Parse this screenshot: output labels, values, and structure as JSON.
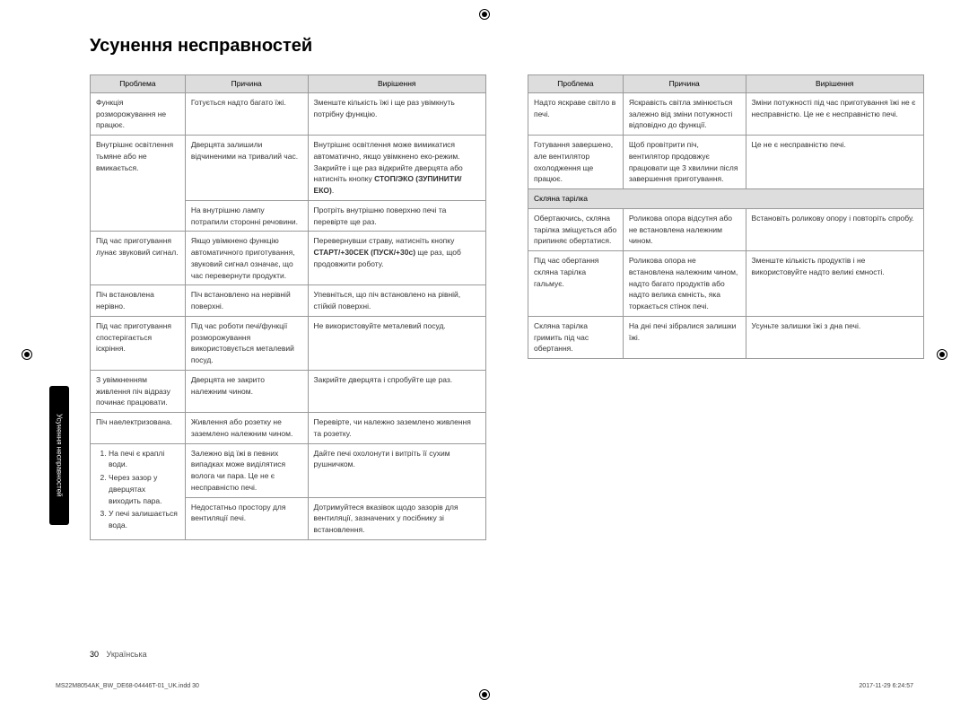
{
  "title": "Усунення несправностей",
  "sideTab": "Усунення несправностей",
  "headers": {
    "problem": "Проблема",
    "cause": "Причина",
    "solution": "Вирішення"
  },
  "table1": {
    "rows": [
      {
        "p": "Функція розморожування не працює.",
        "c": "Готується надто багато їжі.",
        "s": "Зменште кількість їжі і ще раз увімкнуть потрібну функцію.",
        "rowspanP": 1,
        "rowspanC": 1
      },
      {
        "p": "Внутрішнє освітлення тьмяне або не вмикається.",
        "c": "Дверцята залишили відчиненими на тривалий час.",
        "s_pre": "Внутрішнє освітлення може вимикатися автоматично, якщо увімкнено еко-режим. Закрийте і ще раз відкрийте дверцята або натисніть кнопку ",
        "s_bold": "СТОП/ЭКО (ЗУПИНИТИ/ЕКО)",
        "s_post": ".",
        "rowspanP": 2
      },
      {
        "c": "На внутрішню лампу потрапили сторонні речовини.",
        "s": "Протріть внутрішню поверхню печі та перевірте ще раз."
      },
      {
        "p": "Під час приготування лунає звуковий сигнал.",
        "c": "Якщо увімкнено функцію автоматичного приготування, звуковий сигнал означає, що час перевернути продукти.",
        "s_pre": "Перевернувши страву, натисніть кнопку ",
        "s_bold": "СТАРТ/+30СЕК (ПУСК/+30с)",
        "s_post": " ще раз, щоб продовжити роботу."
      },
      {
        "p": "Піч встановлена нерівно.",
        "c": "Піч встановлено на нерівній поверхні.",
        "s": "Упевніться, що піч встановлено на рівній, стійкій поверхні."
      },
      {
        "p": "Під час приготування спостерігається іскріння.",
        "c": "Під час роботи печі/функції розморожування використовується металевий посуд.",
        "s": "Не використовуйте металевий посуд."
      },
      {
        "p": "З увімкненням живлення піч відразу починає працювати.",
        "c": "Дверцята не закрито належним чином.",
        "s": "Закрийте дверцята і спробуйте ще раз."
      },
      {
        "p": "Піч наелектризована.",
        "c": "Живлення або розетку не заземлено належним чином.",
        "s": "Перевірте, чи належно заземлено живлення та розетку."
      },
      {
        "p_list": [
          "На печі є краплі води.",
          "Через зазор у дверцятах виходить пара.",
          "У печі залишається вода."
        ],
        "c": "Залежно від їжі в певних випадках може виділятися волога чи пара. Це не є несправністю печі.",
        "s": "Дайте печі охолонути і витріть її сухим рушничком.",
        "rowspanP": 2
      },
      {
        "c": "Недостатньо простору для вентиляції печі.",
        "s": "Дотримуйтеся вказівок щодо зазорів для вентиляції, зазначених у посібнику зі встановлення."
      }
    ]
  },
  "table2": {
    "rows": [
      {
        "p": "Надто яскраве світло в печі.",
        "c": "Яскравість світла змінюється залежно від зміни потужності відповідно до функції.",
        "s": "Зміни потужності під час приготування їжі не є несправністю. Це не є несправністю печі."
      },
      {
        "p": "Готування завершено, але вентилятор охолодження ще працює.",
        "c": "Щоб провітрити піч, вентилятор продовжує працювати ще 3 хвилини після завершення приготування.",
        "s": "Це не є несправністю печі."
      }
    ],
    "subheader": "Скляна тарілка",
    "rows2": [
      {
        "p": "Обертаючись, скляна тарілка зміщується або припиняє обертатися.",
        "c": "Роликова опора відсутня або не встановлена належним чином.",
        "s": "Встановіть роликову опору і повторіть спробу."
      },
      {
        "p": "Під час обертання скляна тарілка гальмує.",
        "c": "Роликова опора не встановлена належним чином, надто багато продуктів або надто велика ємність, яка торкається стінок печі.",
        "s": "Зменште кількість продуктів і не використовуйте надто великі ємності."
      },
      {
        "p": "Скляна тарілка гримить під час обертання.",
        "c": "На дні печі зібралися залишки їжі.",
        "s": "Усуньте залишки їжі з дна печі."
      }
    ]
  },
  "footer": {
    "pageNum": "30",
    "lang": "Українська"
  },
  "docFooter": {
    "left": "MS22M8054AK_BW_DE68-04446T-01_UK.indd   30",
    "right": "2017-11-29   6:24:57"
  },
  "colWidths": {
    "problem": "24%",
    "cause": "31%",
    "solution": "45%"
  }
}
